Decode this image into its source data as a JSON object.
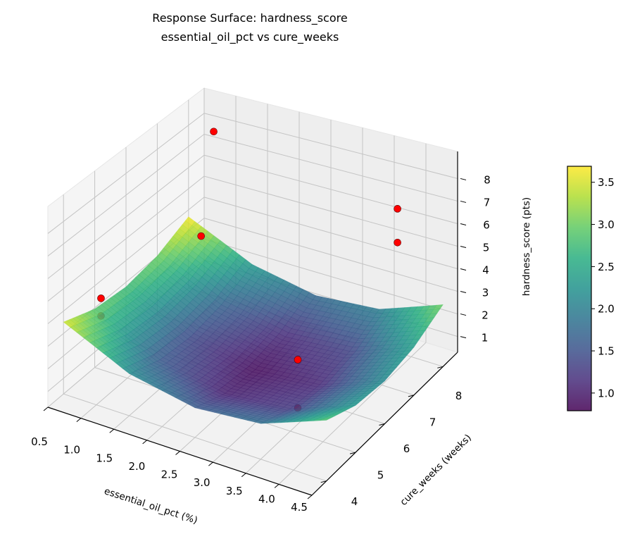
{
  "chart_data": {
    "type": "surface3d",
    "title": "Response Surface: hardness_score",
    "subtitle": "essential_oil_pct vs cure_weeks",
    "xlabel": "essential_oil_pct (%)",
    "ylabel": "cure_weeks (weeks)",
    "zlabel": "hardness_score (pts)",
    "xlim": [
      0.5,
      4.5
    ],
    "ylim": [
      3.5,
      8.5
    ],
    "zlim": [
      0.3,
      9.2
    ],
    "xticks": [
      "0.5",
      "1.0",
      "1.5",
      "2.0",
      "2.5",
      "3.0",
      "3.5",
      "4.0",
      "4.5"
    ],
    "yticks": [
      "4",
      "5",
      "6",
      "7",
      "8"
    ],
    "zticks": [
      "1",
      "2",
      "3",
      "4",
      "5",
      "6",
      "7",
      "8"
    ],
    "grid": true,
    "colormap": "viridis",
    "colorbar": {
      "range": [
        0.79,
        3.69
      ],
      "ticks": [
        "1.0",
        "1.5",
        "2.0",
        "2.5",
        "3.0",
        "3.5"
      ]
    },
    "surface": {
      "x": [
        0.5,
        1.5,
        2.5,
        3.5,
        4.5
      ],
      "y": [
        4,
        5,
        6,
        7,
        8
      ],
      "z": [
        [
          3.51,
          2.15,
          1.59,
          1.83,
          2.87
        ],
        [
          2.95,
          1.59,
          1.03,
          1.27,
          2.31
        ],
        [
          2.79,
          1.43,
          0.87,
          1.11,
          2.15
        ],
        [
          3.03,
          1.67,
          1.11,
          1.35,
          2.39
        ],
        [
          3.67,
          2.31,
          1.75,
          1.99,
          3.03
        ]
      ]
    },
    "scatter": {
      "color": "#ff0000",
      "x": [
        0.7,
        0.6,
        0.5,
        0.5,
        3.9,
        3.9,
        3.5,
        3.5
      ],
      "y": [
        8.4,
        8.2,
        5.2,
        5.2,
        7.75,
        7.75,
        5.25,
        5.25
      ],
      "z": [
        7.4,
        2.6,
        3.2,
        2.4,
        7.1,
        5.6,
        3.1,
        1.0
      ]
    }
  }
}
